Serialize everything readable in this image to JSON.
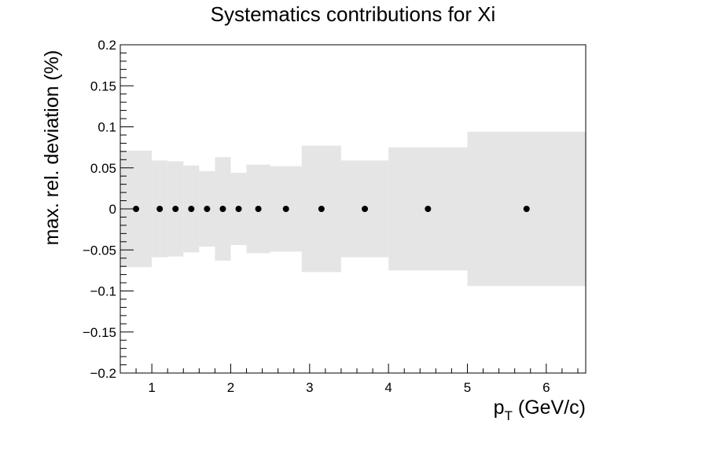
{
  "chart_data": {
    "type": "scatter",
    "title": "Systematics contributions for Xi",
    "xlabel_main": "p",
    "xlabel_sub": "T",
    "xlabel_unit": " (GeV/c)",
    "ylabel": "max. rel. deviation (%)",
    "xlim": [
      0.6,
      6.5
    ],
    "ylim": [
      -0.2,
      0.2
    ],
    "x_ticks": [
      1,
      2,
      3,
      4,
      5,
      6
    ],
    "x_tick_labels": [
      "1",
      "2",
      "3",
      "4",
      "5",
      "6"
    ],
    "y_ticks": [
      -0.2,
      -0.15,
      -0.1,
      -0.05,
      0,
      0.05,
      0.1,
      0.15,
      0.2
    ],
    "y_tick_labels": [
      "−0.2",
      "−0.15",
      "−0.1",
      "−0.05",
      "0",
      "0.05",
      "0.1",
      "0.15",
      "0.2"
    ],
    "band_color": "#e5e5e5",
    "point_color": "#000000",
    "bins": [
      {
        "xlow": 0.6,
        "xhigh": 1.0,
        "err": 0.071
      },
      {
        "xlow": 1.0,
        "xhigh": 1.2,
        "err": 0.059
      },
      {
        "xlow": 1.2,
        "xhigh": 1.4,
        "err": 0.058
      },
      {
        "xlow": 1.4,
        "xhigh": 1.6,
        "err": 0.053
      },
      {
        "xlow": 1.6,
        "xhigh": 1.8,
        "err": 0.046
      },
      {
        "xlow": 1.8,
        "xhigh": 2.0,
        "err": 0.063
      },
      {
        "xlow": 2.0,
        "xhigh": 2.2,
        "err": 0.044
      },
      {
        "xlow": 2.2,
        "xhigh": 2.5,
        "err": 0.054
      },
      {
        "xlow": 2.5,
        "xhigh": 2.9,
        "err": 0.052
      },
      {
        "xlow": 2.9,
        "xhigh": 3.4,
        "err": 0.077
      },
      {
        "xlow": 3.4,
        "xhigh": 4.0,
        "err": 0.059
      },
      {
        "xlow": 4.0,
        "xhigh": 5.0,
        "err": 0.075
      },
      {
        "xlow": 5.0,
        "xhigh": 6.5,
        "err": 0.094
      }
    ],
    "points": [
      {
        "x": 0.8,
        "y": 0
      },
      {
        "x": 1.1,
        "y": 0
      },
      {
        "x": 1.3,
        "y": 0
      },
      {
        "x": 1.5,
        "y": 0
      },
      {
        "x": 1.7,
        "y": 0
      },
      {
        "x": 1.9,
        "y": 0
      },
      {
        "x": 2.1,
        "y": 0
      },
      {
        "x": 2.35,
        "y": 0
      },
      {
        "x": 2.7,
        "y": 0
      },
      {
        "x": 3.15,
        "y": 0
      },
      {
        "x": 3.7,
        "y": 0
      },
      {
        "x": 4.5,
        "y": 0
      },
      {
        "x": 5.75,
        "y": 0
      }
    ]
  }
}
